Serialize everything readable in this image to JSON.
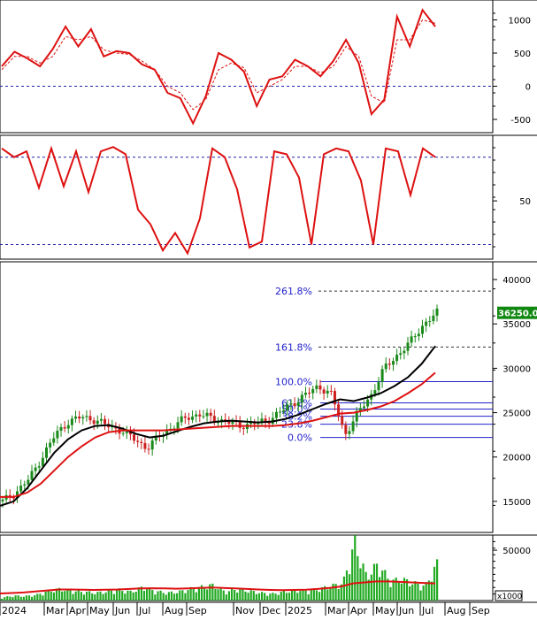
{
  "colors": {
    "price_up": "#1a8a1a",
    "price_down": "#cc2020",
    "ma_short": "#000000",
    "ma_long": "#dd1111",
    "indicator": "#dd1111",
    "fib": "#2222cc",
    "volume": "#22aa22",
    "last_price_box": "#118811",
    "last_price_text": "#ffffff"
  },
  "x_axis": {
    "labels": [
      "2024",
      "Mar",
      "Apr",
      "May",
      "Jun",
      "Jul",
      "Aug",
      "Sep",
      "Nov",
      "Dec",
      "2025",
      "Mar",
      "Apr",
      "May",
      "Jun",
      "Jul",
      "Aug",
      "Sep"
    ]
  },
  "chart_data": [
    {
      "type": "line",
      "panel": "oscillator",
      "ylim": [
        -700,
        1300
      ],
      "ticks": [
        "1000",
        "500",
        "0",
        "-500"
      ],
      "reference_lines": [
        0
      ],
      "series": [
        {
          "values": [
            300,
            520,
            420,
            300,
            560,
            900,
            600,
            860,
            450,
            530,
            500,
            330,
            250,
            -100,
            -180,
            -560,
            -150,
            500,
            400,
            220,
            -300,
            100,
            150,
            400,
            300,
            150,
            380,
            700,
            350,
            -420,
            -200,
            1050,
            600,
            1150,
            900
          ]
        },
        {
          "values": [
            250,
            450,
            450,
            350,
            450,
            750,
            700,
            750,
            550,
            500,
            480,
            380,
            250,
            0,
            -100,
            -350,
            -200,
            250,
            350,
            280,
            -100,
            0,
            100,
            300,
            300,
            200,
            300,
            600,
            450,
            -150,
            -250,
            700,
            700,
            1000,
            950
          ]
        }
      ]
    },
    {
      "type": "line",
      "panel": "momentum",
      "ylim": [
        10,
        95
      ],
      "ticks": [
        "50"
      ],
      "reference_lines": [
        80,
        20
      ],
      "series": [
        {
          "values": [
            86,
            80,
            84,
            59,
            86,
            60,
            84,
            56,
            84,
            87,
            82,
            44,
            34,
            16,
            28,
            14,
            38,
            86,
            80,
            58,
            18,
            22,
            84,
            82,
            66,
            20,
            82,
            86,
            84,
            64,
            20,
            86,
            84,
            54,
            86,
            80
          ]
        }
      ]
    },
    {
      "type": "line",
      "panel": "price",
      "ylim": [
        11500,
        42000
      ],
      "ticks": [
        "40000",
        "35000",
        "30000",
        "25000",
        "20000",
        "15000"
      ],
      "last_price": "36250.00",
      "price_path": [
        15000,
        16000,
        17500,
        20000,
        22500,
        24000,
        24500,
        24200,
        23500,
        23000,
        22000,
        21000,
        22500,
        23500,
        24500,
        24800,
        24300,
        24000,
        23500,
        23800,
        24000,
        25000,
        26000,
        27000,
        28000,
        27000,
        22500,
        25000,
        27000,
        30000,
        31500,
        33000,
        35000,
        36250
      ],
      "series": [
        {
          "values": [
            14500,
            15000,
            16500,
            18500,
            20500,
            22000,
            23000,
            23500,
            23600,
            23200,
            22600,
            22200,
            22400,
            22900,
            23400,
            23800,
            24000,
            24100,
            24000,
            23900,
            24000,
            24300,
            24800,
            25400,
            26000,
            26500,
            26300,
            26700,
            27200,
            28000,
            29000,
            30500,
            32500
          ]
        },
        {
          "values": [
            15500,
            15500,
            16000,
            17000,
            18500,
            20000,
            21200,
            22200,
            22800,
            23000,
            23000,
            23000,
            23000,
            23100,
            23200,
            23300,
            23400,
            23500,
            23500,
            23500,
            23500,
            23600,
            23800,
            24100,
            24500,
            24900,
            25000,
            25300,
            25700,
            26300,
            27200,
            28200,
            29500
          ]
        }
      ],
      "fibonacci": [
        {
          "label": "261.8%",
          "value": 38700
        },
        {
          "label": "161.8%",
          "value": 32400
        },
        {
          "label": "100.0%",
          "value": 28500
        },
        {
          "label": "61.8%",
          "value": 26100
        },
        {
          "label": "50.0%",
          "value": 25400
        },
        {
          "label": "38.2%",
          "value": 24600
        },
        {
          "label": "23.6%",
          "value": 23700
        },
        {
          "label": "0.0%",
          "value": 22200
        }
      ]
    },
    {
      "type": "bar",
      "panel": "volume",
      "ylim": [
        0,
        65000
      ],
      "ticks": [
        "50000"
      ],
      "unit_label": "x1000",
      "series": [
        {
          "values": [
            3000,
            5000,
            4500,
            6000,
            10000,
            12000,
            10000,
            9000,
            8000,
            9500,
            11000,
            9000,
            14000,
            10000,
            8000,
            9000,
            12000,
            14000,
            16000,
            9000,
            12000,
            10000,
            8000,
            7000,
            9000,
            11000,
            10000,
            12000,
            15000,
            18000,
            60000,
            25000,
            38000,
            20000,
            22000,
            18000,
            15000,
            38000
          ]
        },
        {
          "values": [
            7000,
            7500,
            8000,
            9000,
            10000,
            11000,
            11000,
            10800,
            10500,
            10800,
            11000,
            11500,
            12000,
            12200,
            12000,
            11800,
            12000,
            12500,
            13000,
            12500,
            12000,
            11500,
            11000,
            10500,
            10300,
            10500,
            10800,
            11500,
            12500,
            14000,
            17000,
            18000,
            19000,
            19000,
            18500,
            18000,
            17500,
            17000
          ]
        }
      ]
    }
  ]
}
